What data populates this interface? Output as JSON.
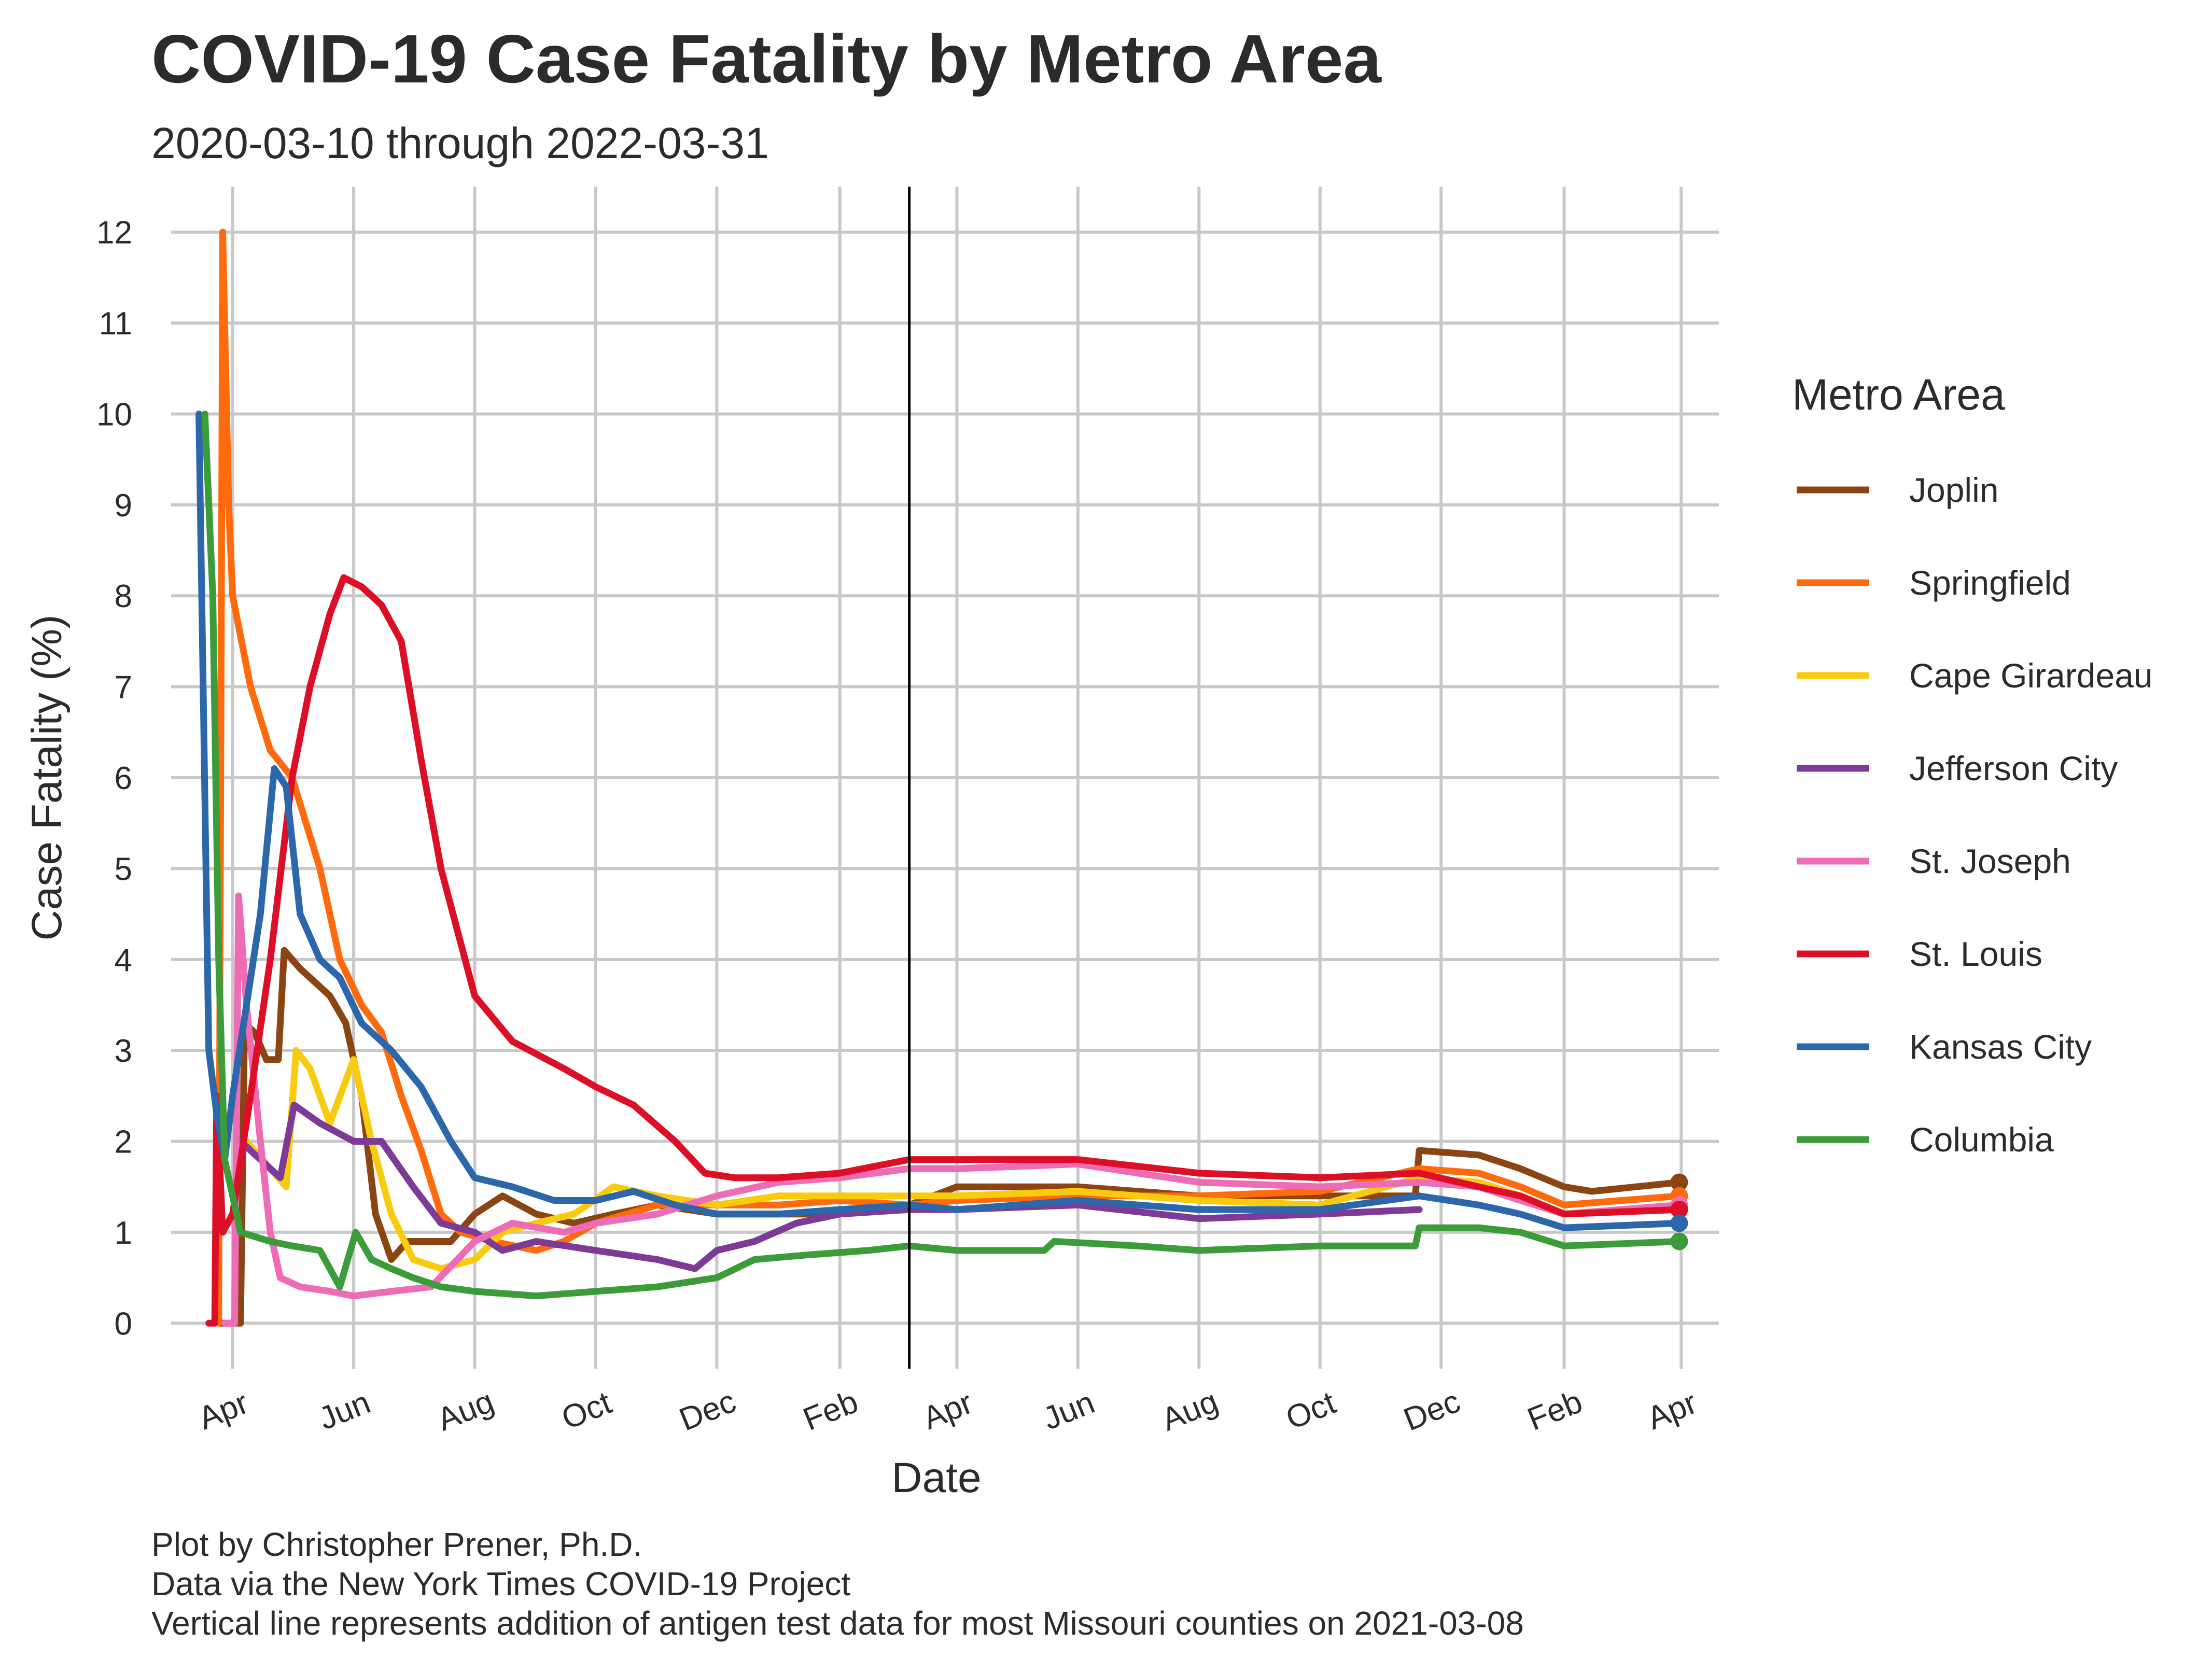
{
  "colors": {
    "Joplin": "#8B4513",
    "Springfield": "#FF6A0D",
    "Cape Girardeau": "#F9CB0F",
    "Jefferson City": "#7D3A96",
    "St. Joseph": "#EE6BB5",
    "St. Louis": "#DC0F26",
    "Kansas City": "#2C66AB",
    "Columbia": "#3C9C3A",
    "grid": "#c8c8c8",
    "text": "#2b2b2b"
  },
  "chart_data": {
    "type": "line",
    "title": "COVID-19 Case Fatality by Metro Area",
    "subtitle": "2020-03-10 through 2022-03-31",
    "xlabel": "Date",
    "ylabel": "Case Fatality (%)",
    "xlim": [
      "2020-03-01",
      "2022-04-20"
    ],
    "ylim": [
      -0.5,
      12.5
    ],
    "yticks": [
      0,
      1,
      2,
      3,
      4,
      5,
      6,
      7,
      8,
      9,
      10,
      11,
      12
    ],
    "ytick_labels": [
      "0",
      "1",
      "2",
      "3",
      "4",
      "5",
      "6",
      "7",
      "8",
      "9",
      "10",
      "11",
      "12"
    ],
    "xticks": [
      "2020-04-01",
      "2020-06-01",
      "2020-08-01",
      "2020-10-01",
      "2020-12-01",
      "2021-02-01",
      "2021-04-01",
      "2021-06-01",
      "2021-08-01",
      "2021-10-01",
      "2021-12-01",
      "2022-02-01",
      "2022-04-01"
    ],
    "xtick_labels": [
      "Apr",
      "Jun",
      "Aug",
      "Oct",
      "Dec",
      "Feb",
      "Apr",
      "Jun",
      "Aug",
      "Oct",
      "Dec",
      "Feb",
      "Apr"
    ],
    "vline": "2021-03-08",
    "legend_title": "Metro Area",
    "legend_position": "right",
    "series": [
      {
        "name": "Joplin",
        "points": [
          [
            "2020-03-25",
            0
          ],
          [
            "2020-04-05",
            0
          ],
          [
            "2020-04-07",
            3.3
          ],
          [
            "2020-04-12",
            3.2
          ],
          [
            "2020-04-18",
            2.9
          ],
          [
            "2020-04-24",
            2.9
          ],
          [
            "2020-04-27",
            4.1
          ],
          [
            "2020-05-05",
            3.9
          ],
          [
            "2020-05-20",
            3.6
          ],
          [
            "2020-05-28",
            3.3
          ],
          [
            "2020-06-05",
            2.5
          ],
          [
            "2020-06-12",
            1.2
          ],
          [
            "2020-06-20",
            0.7
          ],
          [
            "2020-06-28",
            0.9
          ],
          [
            "2020-07-10",
            0.9
          ],
          [
            "2020-07-20",
            0.9
          ],
          [
            "2020-08-01",
            1.2
          ],
          [
            "2020-08-15",
            1.4
          ],
          [
            "2020-09-01",
            1.2
          ],
          [
            "2020-09-20",
            1.1
          ],
          [
            "2020-10-10",
            1.2
          ],
          [
            "2020-11-01",
            1.3
          ],
          [
            "2020-12-01",
            1.2
          ],
          [
            "2021-01-01",
            1.2
          ],
          [
            "2021-02-01",
            1.2
          ],
          [
            "2021-03-08",
            1.3
          ],
          [
            "2021-04-01",
            1.5
          ],
          [
            "2021-06-01",
            1.5
          ],
          [
            "2021-08-01",
            1.4
          ],
          [
            "2021-10-01",
            1.4
          ],
          [
            "2021-11-18",
            1.4
          ],
          [
            "2021-11-20",
            1.9
          ],
          [
            "2021-12-20",
            1.85
          ],
          [
            "2022-01-10",
            1.7
          ],
          [
            "2022-02-01",
            1.5
          ],
          [
            "2022-02-15",
            1.45
          ],
          [
            "2022-03-31",
            1.55
          ]
        ]
      },
      {
        "name": "Springfield",
        "points": [
          [
            "2020-03-25",
            0
          ],
          [
            "2020-03-27",
            12.0
          ],
          [
            "2020-03-30",
            9.0
          ],
          [
            "2020-04-01",
            8.0
          ],
          [
            "2020-04-10",
            7.0
          ],
          [
            "2020-04-20",
            6.3
          ],
          [
            "2020-05-01",
            6.0
          ],
          [
            "2020-05-15",
            5.0
          ],
          [
            "2020-05-25",
            4.0
          ],
          [
            "2020-06-05",
            3.5
          ],
          [
            "2020-06-15",
            3.2
          ],
          [
            "2020-06-25",
            2.5
          ],
          [
            "2020-07-05",
            1.9
          ],
          [
            "2020-07-15",
            1.2
          ],
          [
            "2020-07-25",
            1.0
          ],
          [
            "2020-08-10",
            0.9
          ],
          [
            "2020-09-01",
            0.8
          ],
          [
            "2020-09-15",
            0.9
          ],
          [
            "2020-10-01",
            1.1
          ],
          [
            "2020-11-01",
            1.3
          ],
          [
            "2020-12-01",
            1.3
          ],
          [
            "2021-01-01",
            1.3
          ],
          [
            "2021-02-01",
            1.35
          ],
          [
            "2021-03-08",
            1.3
          ],
          [
            "2021-04-01",
            1.35
          ],
          [
            "2021-06-01",
            1.4
          ],
          [
            "2021-08-01",
            1.4
          ],
          [
            "2021-10-01",
            1.45
          ],
          [
            "2021-11-20",
            1.7
          ],
          [
            "2021-12-20",
            1.65
          ],
          [
            "2022-01-10",
            1.5
          ],
          [
            "2022-02-01",
            1.3
          ],
          [
            "2022-03-31",
            1.4
          ]
        ]
      },
      {
        "name": "Cape Girardeau",
        "points": [
          [
            "2020-04-08",
            2.0
          ],
          [
            "2020-04-20",
            1.7
          ],
          [
            "2020-04-28",
            1.5
          ],
          [
            "2020-05-03",
            3.0
          ],
          [
            "2020-05-10",
            2.8
          ],
          [
            "2020-05-20",
            2.2
          ],
          [
            "2020-06-01",
            2.9
          ],
          [
            "2020-06-10",
            2.0
          ],
          [
            "2020-06-20",
            1.2
          ],
          [
            "2020-07-01",
            0.7
          ],
          [
            "2020-07-15",
            0.6
          ],
          [
            "2020-08-01",
            0.7
          ],
          [
            "2020-08-15",
            1.0
          ],
          [
            "2020-09-01",
            1.1
          ],
          [
            "2020-09-20",
            1.2
          ],
          [
            "2020-10-10",
            1.5
          ],
          [
            "2020-11-01",
            1.4
          ],
          [
            "2020-12-01",
            1.3
          ],
          [
            "2021-01-01",
            1.4
          ],
          [
            "2021-02-01",
            1.4
          ],
          [
            "2021-03-08",
            1.4
          ],
          [
            "2021-04-01",
            1.4
          ],
          [
            "2021-06-01",
            1.45
          ],
          [
            "2021-08-01",
            1.35
          ],
          [
            "2021-10-01",
            1.3
          ],
          [
            "2021-11-20",
            1.6
          ],
          [
            "2021-12-20",
            1.55
          ],
          [
            "2022-01-10",
            1.4
          ],
          [
            "2022-02-01",
            1.2
          ],
          [
            "2022-03-31",
            1.3
          ]
        ]
      },
      {
        "name": "Jefferson City",
        "points": [
          [
            "2020-04-05",
            2.0
          ],
          [
            "2020-04-15",
            1.8
          ],
          [
            "2020-04-25",
            1.6
          ],
          [
            "2020-05-02",
            2.4
          ],
          [
            "2020-05-15",
            2.2
          ],
          [
            "2020-06-01",
            2.0
          ],
          [
            "2020-06-15",
            2.0
          ],
          [
            "2020-07-01",
            1.5
          ],
          [
            "2020-07-15",
            1.1
          ],
          [
            "2020-08-01",
            1.0
          ],
          [
            "2020-08-15",
            0.8
          ],
          [
            "2020-09-01",
            0.9
          ],
          [
            "2020-10-01",
            0.8
          ],
          [
            "2020-11-01",
            0.7
          ],
          [
            "2020-11-20",
            0.6
          ],
          [
            "2020-12-01",
            0.8
          ],
          [
            "2020-12-20",
            0.9
          ],
          [
            "2021-01-10",
            1.1
          ],
          [
            "2021-02-01",
            1.2
          ],
          [
            "2021-03-08",
            1.25
          ],
          [
            "2021-04-01",
            1.25
          ],
          [
            "2021-06-01",
            1.3
          ],
          [
            "2021-08-01",
            1.15
          ],
          [
            "2021-10-01",
            1.2
          ],
          [
            "2021-11-20",
            1.25
          ]
        ]
      },
      {
        "name": "St. Joseph",
        "points": [
          [
            "2020-03-28",
            0
          ],
          [
            "2020-04-02",
            0
          ],
          [
            "2020-04-04",
            4.7
          ],
          [
            "2020-04-08",
            3.5
          ],
          [
            "2020-04-15",
            2.0
          ],
          [
            "2020-04-20",
            1.0
          ],
          [
            "2020-04-25",
            0.5
          ],
          [
            "2020-05-05",
            0.4
          ],
          [
            "2020-05-20",
            0.35
          ],
          [
            "2020-06-01",
            0.3
          ],
          [
            "2020-06-20",
            0.35
          ],
          [
            "2020-07-10",
            0.4
          ],
          [
            "2020-08-01",
            0.9
          ],
          [
            "2020-08-20",
            1.1
          ],
          [
            "2020-09-15",
            1.0
          ],
          [
            "2020-10-01",
            1.1
          ],
          [
            "2020-11-01",
            1.2
          ],
          [
            "2020-12-01",
            1.4
          ],
          [
            "2021-01-01",
            1.55
          ],
          [
            "2021-02-01",
            1.6
          ],
          [
            "2021-03-08",
            1.7
          ],
          [
            "2021-04-01",
            1.7
          ],
          [
            "2021-06-01",
            1.75
          ],
          [
            "2021-08-01",
            1.55
          ],
          [
            "2021-10-01",
            1.5
          ],
          [
            "2021-11-20",
            1.55
          ],
          [
            "2021-12-20",
            1.5
          ],
          [
            "2022-01-10",
            1.35
          ],
          [
            "2022-02-01",
            1.2
          ],
          [
            "2022-03-31",
            1.3
          ]
        ]
      },
      {
        "name": "St. Louis",
        "points": [
          [
            "2020-03-20",
            0
          ],
          [
            "2020-03-23",
            0
          ],
          [
            "2020-03-24",
            2.5
          ],
          [
            "2020-03-27",
            1.0
          ],
          [
            "2020-04-01",
            1.2
          ],
          [
            "2020-04-10",
            2.5
          ],
          [
            "2020-04-20",
            4.0
          ],
          [
            "2020-05-01",
            6.0
          ],
          [
            "2020-05-10",
            7.0
          ],
          [
            "2020-05-20",
            7.8
          ],
          [
            "2020-05-27",
            8.2
          ],
          [
            "2020-06-05",
            8.1
          ],
          [
            "2020-06-15",
            7.9
          ],
          [
            "2020-06-25",
            7.5
          ],
          [
            "2020-07-05",
            6.2
          ],
          [
            "2020-07-15",
            5.0
          ],
          [
            "2020-08-01",
            3.6
          ],
          [
            "2020-08-20",
            3.1
          ],
          [
            "2020-09-15",
            2.8
          ],
          [
            "2020-10-01",
            2.6
          ],
          [
            "2020-10-20",
            2.4
          ],
          [
            "2020-11-10",
            2.0
          ],
          [
            "2020-11-25",
            1.65
          ],
          [
            "2020-12-10",
            1.6
          ],
          [
            "2021-01-01",
            1.6
          ],
          [
            "2021-02-01",
            1.65
          ],
          [
            "2021-03-08",
            1.8
          ],
          [
            "2021-04-01",
            1.8
          ],
          [
            "2021-06-01",
            1.8
          ],
          [
            "2021-08-01",
            1.65
          ],
          [
            "2021-10-01",
            1.6
          ],
          [
            "2021-11-20",
            1.65
          ],
          [
            "2021-12-20",
            1.5
          ],
          [
            "2022-01-10",
            1.4
          ],
          [
            "2022-02-01",
            1.2
          ],
          [
            "2022-03-31",
            1.25
          ]
        ]
      },
      {
        "name": "Kansas City",
        "points": [
          [
            "2020-03-15",
            10.0
          ],
          [
            "2020-03-20",
            3.0
          ],
          [
            "2020-03-24",
            2.3
          ],
          [
            "2020-03-28",
            1.8
          ],
          [
            "2020-04-01",
            2.5
          ],
          [
            "2020-04-08",
            3.5
          ],
          [
            "2020-04-15",
            4.5
          ],
          [
            "2020-04-22",
            6.1
          ],
          [
            "2020-04-28",
            5.9
          ],
          [
            "2020-05-05",
            4.5
          ],
          [
            "2020-05-15",
            4.0
          ],
          [
            "2020-05-25",
            3.8
          ],
          [
            "2020-06-05",
            3.3
          ],
          [
            "2020-06-20",
            3.0
          ],
          [
            "2020-07-05",
            2.6
          ],
          [
            "2020-07-20",
            2.0
          ],
          [
            "2020-08-01",
            1.6
          ],
          [
            "2020-08-20",
            1.5
          ],
          [
            "2020-09-10",
            1.35
          ],
          [
            "2020-10-01",
            1.35
          ],
          [
            "2020-10-20",
            1.45
          ],
          [
            "2020-11-10",
            1.3
          ],
          [
            "2020-12-01",
            1.2
          ],
          [
            "2021-01-01",
            1.2
          ],
          [
            "2021-02-01",
            1.25
          ],
          [
            "2021-03-08",
            1.3
          ],
          [
            "2021-04-01",
            1.25
          ],
          [
            "2021-06-01",
            1.35
          ],
          [
            "2021-08-01",
            1.25
          ],
          [
            "2021-10-01",
            1.25
          ],
          [
            "2021-11-20",
            1.4
          ],
          [
            "2021-12-20",
            1.3
          ],
          [
            "2022-01-10",
            1.2
          ],
          [
            "2022-02-01",
            1.05
          ],
          [
            "2022-03-31",
            1.1
          ]
        ]
      },
      {
        "name": "Columbia",
        "points": [
          [
            "2020-03-18",
            10.0
          ],
          [
            "2020-03-22",
            8.0
          ],
          [
            "2020-03-25",
            4.0
          ],
          [
            "2020-03-28",
            1.8
          ],
          [
            "2020-04-05",
            1.0
          ],
          [
            "2020-04-20",
            0.9
          ],
          [
            "2020-05-01",
            0.85
          ],
          [
            "2020-05-15",
            0.8
          ],
          [
            "2020-05-25",
            0.4
          ],
          [
            "2020-06-02",
            1.0
          ],
          [
            "2020-06-10",
            0.7
          ],
          [
            "2020-06-20",
            0.6
          ],
          [
            "2020-07-01",
            0.5
          ],
          [
            "2020-07-15",
            0.4
          ],
          [
            "2020-08-01",
            0.35
          ],
          [
            "2020-09-01",
            0.3
          ],
          [
            "2020-10-01",
            0.35
          ],
          [
            "2020-11-01",
            0.4
          ],
          [
            "2020-12-01",
            0.5
          ],
          [
            "2020-12-20",
            0.7
          ],
          [
            "2021-01-15",
            0.75
          ],
          [
            "2021-02-15",
            0.8
          ],
          [
            "2021-03-08",
            0.85
          ],
          [
            "2021-04-01",
            0.8
          ],
          [
            "2021-05-15",
            0.8
          ],
          [
            "2021-05-20",
            0.9
          ],
          [
            "2021-07-01",
            0.85
          ],
          [
            "2021-08-01",
            0.8
          ],
          [
            "2021-10-01",
            0.85
          ],
          [
            "2021-11-18",
            0.85
          ],
          [
            "2021-11-20",
            1.05
          ],
          [
            "2021-12-20",
            1.05
          ],
          [
            "2022-01-10",
            1.0
          ],
          [
            "2022-02-01",
            0.85
          ],
          [
            "2022-03-31",
            0.9
          ]
        ]
      }
    ]
  },
  "captions": {
    "line1": "Plot by Christopher Prener, Ph.D.",
    "line2": "Data via the New York Times COVID-19 Project",
    "line3": "Vertical line represents addition of antigen test data for most Missouri counties on 2021-03-08"
  }
}
